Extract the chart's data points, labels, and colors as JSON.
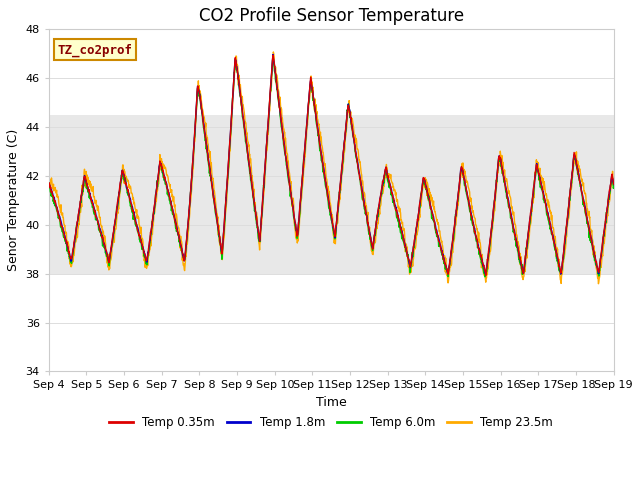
{
  "title": "CO2 Profile Sensor Temperature",
  "ylabel": "Senor Temperature (C)",
  "xlabel": "Time",
  "annotation_text": "TZ_co2prof",
  "annotation_color": "#880000",
  "annotation_bg": "#ffffcc",
  "annotation_border": "#cc8800",
  "ylim": [
    34,
    48
  ],
  "yticks": [
    34,
    36,
    38,
    40,
    42,
    44,
    46,
    48
  ],
  "gray_band": [
    38,
    44.5
  ],
  "xtick_labels": [
    "Sep 4",
    "Sep 5",
    "Sep 6",
    "Sep 7",
    "Sep 8",
    "Sep 9",
    "Sep 10",
    "Sep 11",
    "Sep 12",
    "Sep 13",
    "Sep 14",
    "Sep 15",
    "Sep 16",
    "Sep 17",
    "Sep 18",
    "Sep 19"
  ],
  "line_colors": [
    "#dd0000",
    "#0000cc",
    "#00cc00",
    "#ffaa00"
  ],
  "line_labels": [
    "Temp 0.35m",
    "Temp 1.8m",
    "Temp 6.0m",
    "Temp 23.5m"
  ],
  "bg_color": "#ffffff",
  "gray_band_color": "#e8e8e8",
  "grid_color": "#dddddd",
  "title_fontsize": 12,
  "label_fontsize": 9,
  "tick_fontsize": 8
}
